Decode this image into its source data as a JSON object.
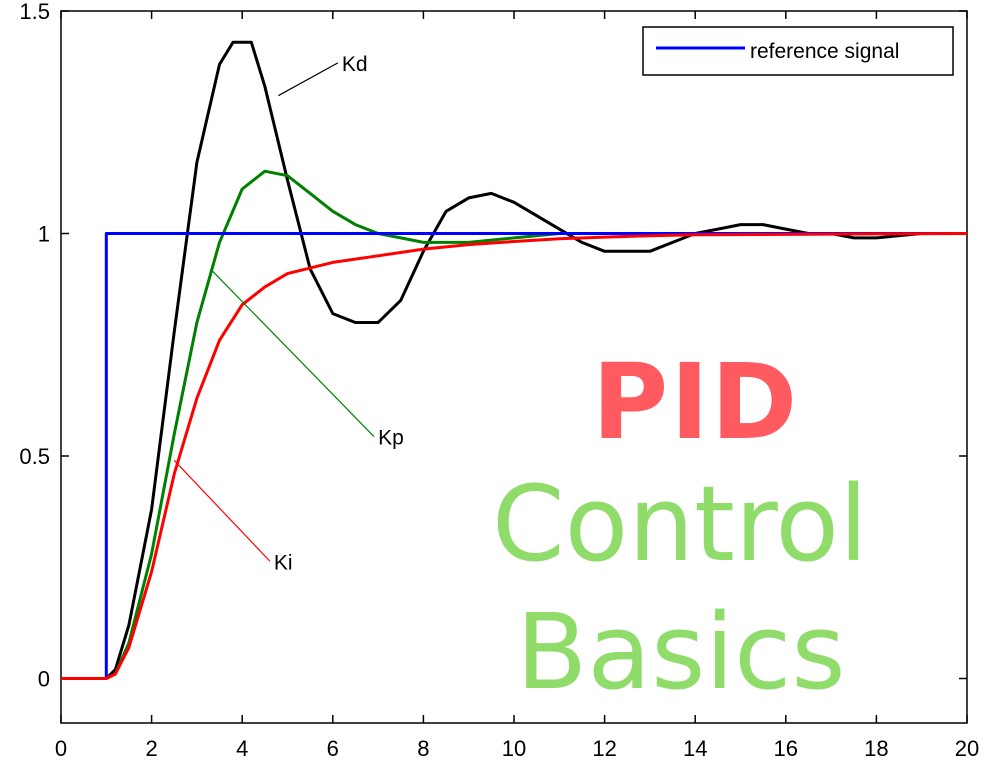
{
  "chart_data": {
    "type": "line",
    "title": "",
    "xlabel": "",
    "ylabel": "",
    "xlim": [
      0,
      20
    ],
    "ylim": [
      -0.1,
      1.5
    ],
    "xticks": [
      0,
      2,
      4,
      6,
      8,
      10,
      12,
      14,
      16,
      18,
      20
    ],
    "yticks": [
      {
        "value": 0,
        "label": "0"
      },
      {
        "value": 0.5,
        "label": "0.5"
      },
      {
        "value": 1,
        "label": "1"
      },
      {
        "value": 1.5,
        "label": "1.5"
      }
    ],
    "grid": false,
    "legend": {
      "position": "top-right",
      "entries": [
        "reference signal"
      ]
    },
    "series": [
      {
        "name": "reference signal",
        "color": "#0000ff",
        "x": [
          0,
          1,
          1,
          20
        ],
        "y": [
          0,
          0,
          1,
          1
        ]
      },
      {
        "name": "Kd",
        "color": "#000000",
        "x": [
          0,
          1,
          1.2,
          1.5,
          2,
          2.5,
          3,
          3.5,
          3.8,
          4.2,
          4.5,
          5,
          5.5,
          6,
          6.5,
          7,
          7.5,
          8,
          8.5,
          9,
          9.5,
          10,
          10.5,
          11,
          11.5,
          12,
          12.5,
          13,
          13.5,
          14,
          14.5,
          15,
          15.5,
          16,
          16.5,
          17,
          17.5,
          18,
          19,
          20
        ],
        "y": [
          0,
          0,
          0.02,
          0.12,
          0.38,
          0.78,
          1.16,
          1.38,
          1.43,
          1.43,
          1.33,
          1.12,
          0.92,
          0.82,
          0.8,
          0.8,
          0.85,
          0.96,
          1.05,
          1.08,
          1.09,
          1.07,
          1.04,
          1.01,
          0.98,
          0.96,
          0.96,
          0.96,
          0.98,
          1.0,
          1.01,
          1.02,
          1.02,
          1.01,
          1.0,
          1.0,
          0.99,
          0.99,
          1.0,
          1.0
        ]
      },
      {
        "name": "Kp",
        "color": "#008000",
        "x": [
          0,
          1,
          1.2,
          1.5,
          2,
          2.5,
          3,
          3.5,
          4,
          4.5,
          5,
          5.5,
          6,
          6.5,
          7,
          7.5,
          8,
          8.5,
          9,
          10,
          11,
          12,
          14,
          16,
          20
        ],
        "y": [
          0,
          0,
          0.01,
          0.08,
          0.28,
          0.55,
          0.8,
          0.98,
          1.1,
          1.14,
          1.13,
          1.09,
          1.05,
          1.02,
          1.0,
          0.99,
          0.98,
          0.98,
          0.98,
          0.99,
          1.0,
          1.0,
          1.0,
          1.0,
          1.0
        ]
      },
      {
        "name": "Ki",
        "color": "#ff0000",
        "x": [
          0,
          1,
          1.2,
          1.5,
          2,
          2.5,
          3,
          3.5,
          4,
          4.5,
          5,
          6,
          7,
          8,
          9,
          10,
          11,
          12,
          13,
          14,
          16,
          18,
          20
        ],
        "y": [
          0,
          0,
          0.01,
          0.07,
          0.24,
          0.46,
          0.63,
          0.76,
          0.84,
          0.88,
          0.91,
          0.935,
          0.95,
          0.965,
          0.975,
          0.982,
          0.988,
          0.992,
          0.995,
          0.997,
          0.998,
          0.999,
          1.0
        ]
      }
    ],
    "annotations": [
      {
        "text": "Kd",
        "color": "#000000",
        "text_at": [
          6.2,
          1.37
        ],
        "points_to": [
          4.8,
          1.31
        ]
      },
      {
        "text": "Kp",
        "color": "#008000",
        "text_at": [
          7.0,
          0.53
        ],
        "points_to": [
          3.3,
          0.92
        ]
      },
      {
        "text": "Ki",
        "color": "#ff0000",
        "text_at": [
          4.7,
          0.25
        ],
        "points_to": [
          2.5,
          0.49
        ]
      }
    ]
  },
  "overlay": {
    "line1": "PID",
    "line2": "Control",
    "line3": "Basics",
    "line1_color": "#ff5a5f",
    "line23_color": "#8fdc6a"
  }
}
